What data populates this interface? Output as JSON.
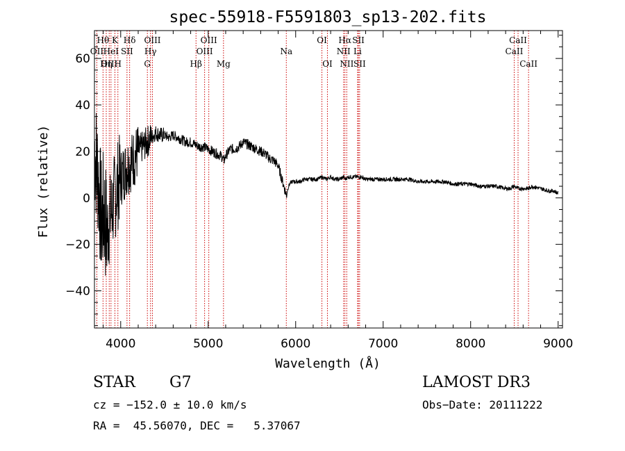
{
  "chart_data": {
    "type": "line",
    "title": "spec-55918-F5591803_sp13-202.fits",
    "xlabel": "Wavelength (Å)",
    "ylabel": "Flux (relative)",
    "xlim": [
      3700,
      9050
    ],
    "ylim": [
      -56,
      72
    ],
    "x_ticks": [
      4000,
      5000,
      6000,
      7000,
      8000,
      9000
    ],
    "y_ticks": [
      -40,
      -20,
      0,
      20,
      40,
      60
    ],
    "grid": false,
    "series": [
      {
        "name": "flux",
        "x": [
          3700,
          3740,
          3780,
          3810,
          3840,
          3870,
          3900,
          3930,
          3960,
          3990,
          4020,
          4050,
          4080,
          4110,
          4150,
          4200,
          4250,
          4300,
          4350,
          4400,
          4450,
          4500,
          4550,
          4600,
          4650,
          4700,
          4750,
          4800,
          4850,
          4900,
          4950,
          5000,
          5050,
          5100,
          5150,
          5180,
          5200,
          5250,
          5300,
          5350,
          5400,
          5450,
          5500,
          5550,
          5600,
          5650,
          5700,
          5750,
          5800,
          5850,
          5880,
          5895,
          5910,
          5930,
          5960,
          6000,
          6050,
          6100,
          6150,
          6200,
          6250,
          6300,
          6350,
          6400,
          6450,
          6500,
          6550,
          6563,
          6600,
          6650,
          6700,
          6750,
          6800,
          6850,
          6900,
          7000,
          7100,
          7200,
          7300,
          7400,
          7500,
          7600,
          7700,
          7800,
          7900,
          8000,
          8100,
          8200,
          8300,
          8400,
          8450,
          8498,
          8542,
          8600,
          8662,
          8700,
          8800,
          8900,
          8950,
          9000
        ],
        "y": [
          22,
          10,
          -10,
          -5,
          -15,
          -10,
          -5,
          0,
          5,
          8,
          10,
          12,
          14,
          15,
          17,
          20,
          22,
          24,
          26,
          28,
          27,
          27,
          26,
          27,
          26,
          25,
          24,
          24,
          23,
          22,
          22,
          21,
          20,
          19,
          18,
          16,
          18,
          21,
          21,
          22,
          24,
          23,
          22,
          21,
          20,
          19,
          17,
          16,
          14,
          7,
          3,
          1,
          4,
          6,
          7,
          7,
          7,
          8,
          8,
          8,
          8,
          9,
          8,
          9,
          8,
          8,
          9,
          8,
          9,
          9,
          9,
          9,
          8,
          8,
          8,
          8,
          8,
          8,
          8,
          7,
          7,
          7,
          7,
          6,
          6,
          6,
          5,
          5,
          5,
          4,
          4,
          5,
          4,
          4,
          4,
          5,
          4,
          3,
          3,
          2
        ]
      }
    ],
    "line_annotations": [
      {
        "label": "Hθ",
        "wavelength": 3798,
        "row": 1
      },
      {
        "label": "OII",
        "wavelength": 3727,
        "row": 2
      },
      {
        "label": "Hη",
        "wavelength": 3835,
        "row": 3
      },
      {
        "label": "OIII",
        "wavelength": 3869,
        "row": 3
      },
      {
        "label": "K",
        "wavelength": 3934,
        "row": 1
      },
      {
        "label": "H",
        "wavelength": 3968,
        "row": 3
      },
      {
        "label": "HeI",
        "wavelength": 3889,
        "row": 2
      },
      {
        "label": "SII",
        "wavelength": 4072,
        "row": 2
      },
      {
        "label": "Hδ",
        "wavelength": 4102,
        "row": 1
      },
      {
        "label": "OIII",
        "wavelength": 4363,
        "row": 1
      },
      {
        "label": "Hγ",
        "wavelength": 4341,
        "row": 2
      },
      {
        "label": "G",
        "wavelength": 4305,
        "row": 3
      },
      {
        "label": "Hβ",
        "wavelength": 4861,
        "row": 3
      },
      {
        "label": "OIII",
        "wavelength": 5007,
        "row": 1
      },
      {
        "label": "OIII",
        "wavelength": 4959,
        "row": 2
      },
      {
        "label": "Mg",
        "wavelength": 5175,
        "row": 3
      },
      {
        "label": "Na",
        "wavelength": 5893,
        "row": 2
      },
      {
        "label": "OI",
        "wavelength": 6300,
        "row": 1
      },
      {
        "label": "OI",
        "wavelength": 6363,
        "row": 3
      },
      {
        "label": "Hα",
        "wavelength": 6563,
        "row": 1
      },
      {
        "label": "NII",
        "wavelength": 6548,
        "row": 2
      },
      {
        "label": "NII",
        "wavelength": 6584,
        "row": 3
      },
      {
        "label": "SII",
        "wavelength": 6717,
        "row": 1
      },
      {
        "label": "Li",
        "wavelength": 6708,
        "row": 2
      },
      {
        "label": "SII",
        "wavelength": 6731,
        "row": 3
      },
      {
        "label": "CaII",
        "wavelength": 8542,
        "row": 1
      },
      {
        "label": "CaII",
        "wavelength": 8498,
        "row": 2
      },
      {
        "label": "CaII",
        "wavelength": 8662,
        "row": 3
      }
    ]
  },
  "info": {
    "object_type": "STAR",
    "subclass": "G7",
    "survey": "LAMOST DR3",
    "redshift_text": "cz = −152.0 ± 10.0 km/s",
    "obs_date": "Obs−Date: 20111222",
    "coords": "RA =  45.56070, DEC =   5.37067"
  },
  "colors": {
    "axis": "#000000",
    "spectrum": "#000000",
    "line_markers": "#cc0000"
  }
}
